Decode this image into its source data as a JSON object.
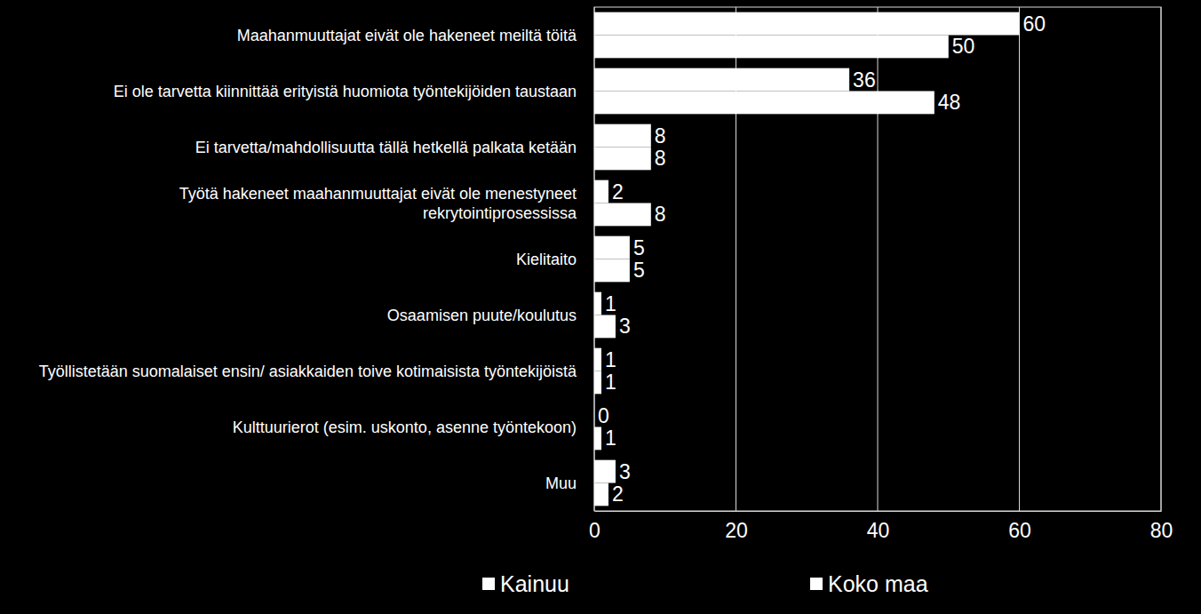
{
  "chart_data": {
    "type": "bar",
    "orientation": "horizontal",
    "categories": [
      "Maahanmuuttajat eivät ole hakeneet meiltä töitä",
      "Ei ole tarvetta kiinnittää erityistä huomiota työntekijöiden taustaan",
      "Ei tarvetta/mahdollisuutta tällä hetkellä palkata ketään",
      "Työtä hakeneet maahanmuuttajat eivät ole menestyneet rekrytointiprosessissa",
      "Kielitaito",
      "Osaamisen puute/koulutus",
      "Työllistetään suomalaiset ensin/ asiakkaiden toive kotimaisista työntekijöistä",
      "Kulttuurierot (esim. uskonto, asenne työntekoon)",
      "Muu"
    ],
    "series": [
      {
        "name": "Kainuu",
        "color": "#ffffff",
        "values": [
          60,
          36,
          8,
          2,
          5,
          1,
          1,
          0,
          3
        ]
      },
      {
        "name": "Koko maa",
        "color": "#ffffff",
        "values": [
          50,
          48,
          8,
          8,
          5,
          3,
          1,
          1,
          2
        ]
      }
    ],
    "xlim": [
      0,
      80
    ],
    "xticks": [
      0,
      20,
      40,
      60,
      80
    ],
    "grid": true,
    "data_labels": true,
    "legend": "bottom"
  }
}
